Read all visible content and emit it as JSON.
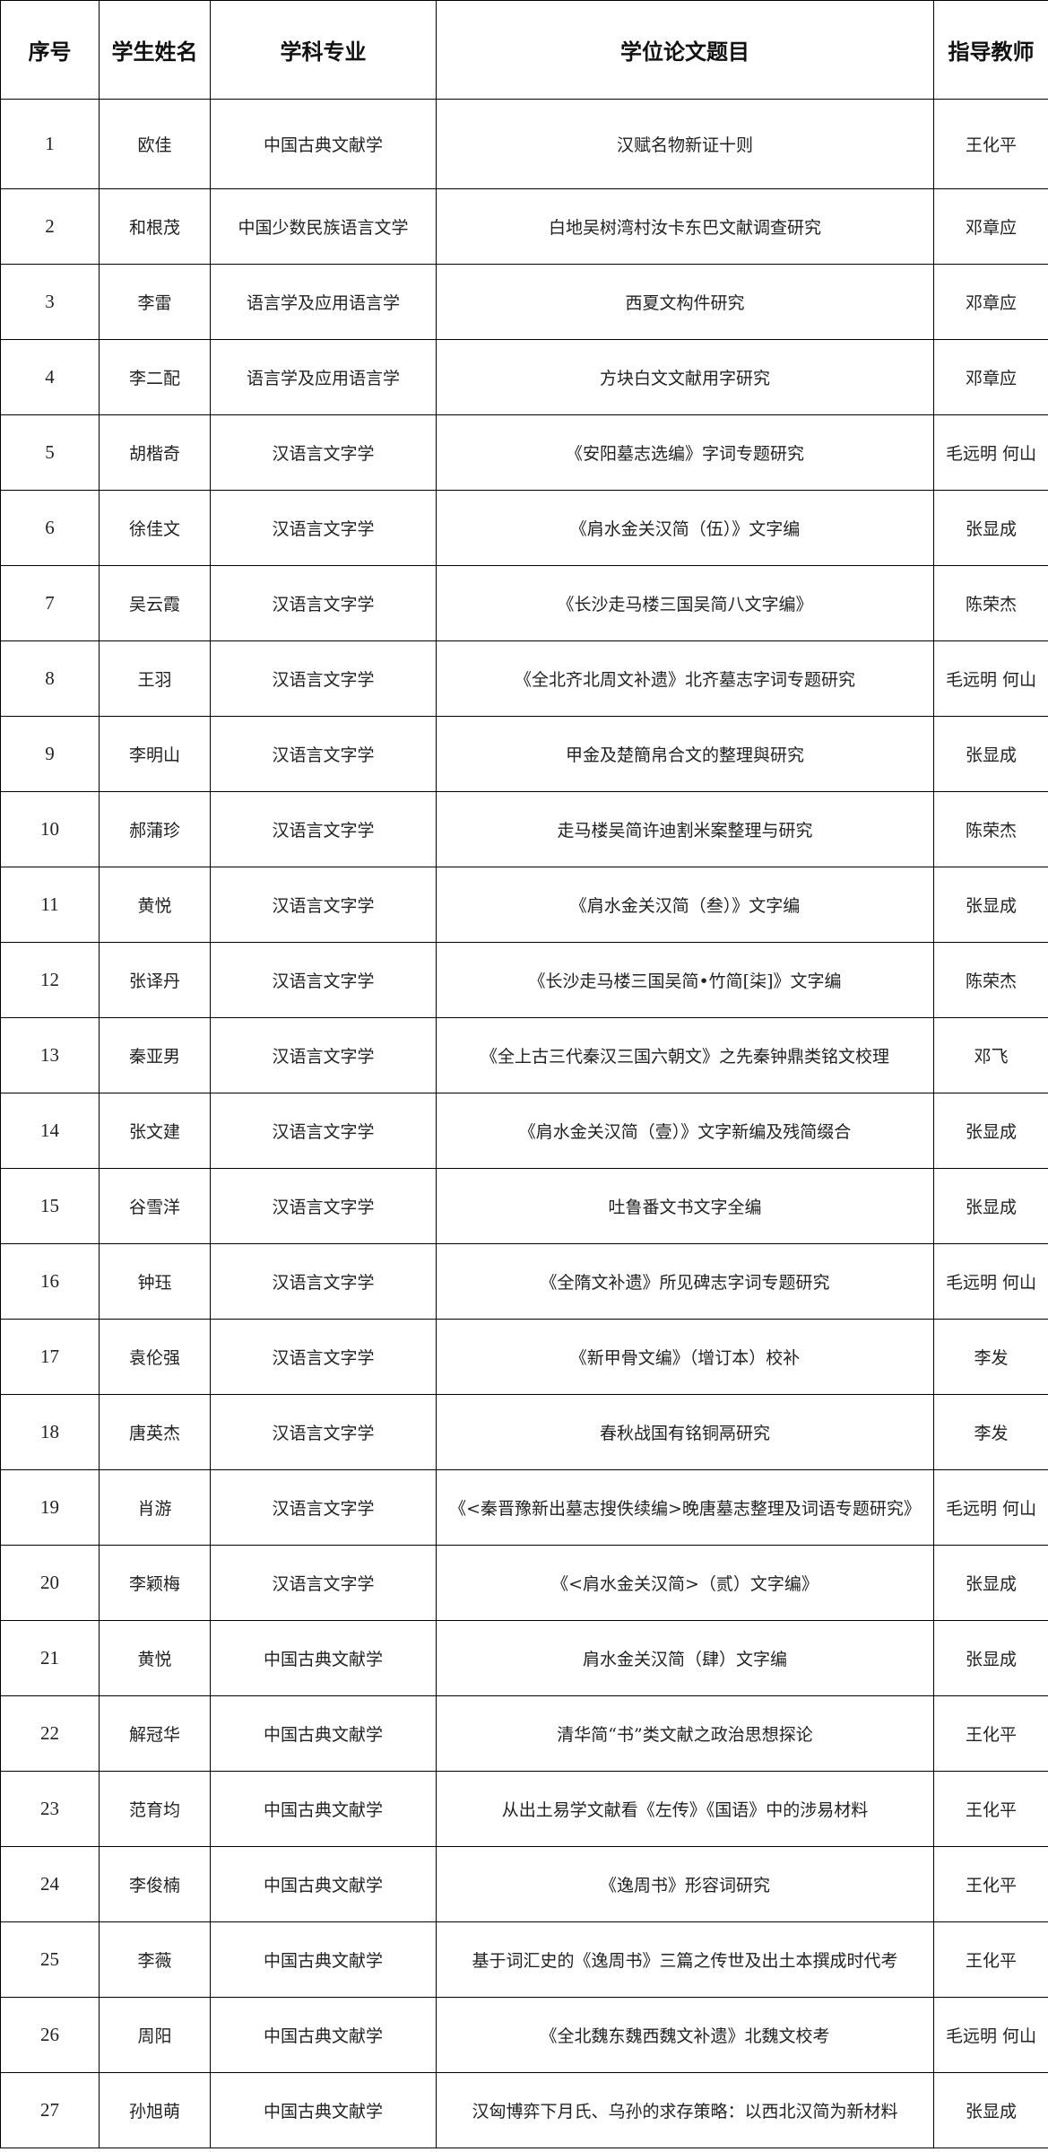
{
  "headers": [
    "序号",
    "学生姓名",
    "学科专业",
    "学位论文题目",
    "指导教师"
  ],
  "rows": [
    [
      "1",
      "欧佳",
      "中国古典文献学",
      "汉赋名物新证十则",
      "王化平"
    ],
    [
      "2",
      "和根茂",
      "中国少数民族语言文学",
      "白地吴树湾村汝卡东巴文献调查研究",
      "邓章应"
    ],
    [
      "3",
      "李雷",
      "语言学及应用语言学",
      "西夏文构件研究",
      "邓章应"
    ],
    [
      "4",
      "李二配",
      "语言学及应用语言学",
      "方块白文文献用字研究",
      "邓章应"
    ],
    [
      "5",
      "胡楷奇",
      "汉语言文字学",
      "《安阳墓志选编》字词专题研究",
      "毛远明  何山"
    ],
    [
      "6",
      "徐佳文",
      "汉语言文字学",
      "《肩水金关汉简（伍）》文字编",
      "张显成"
    ],
    [
      "7",
      "吴云霞",
      "汉语言文字学",
      "《长沙走马楼三国吴简八文字编》",
      "陈荣杰"
    ],
    [
      "8",
      "王羽",
      "汉语言文字学",
      "《全北齐北周文补遗》北齐墓志字词专题研究",
      "毛远明  何山"
    ],
    [
      "9",
      "李明山",
      "汉语言文字学",
      "甲金及楚簡帛合文的整理與研究",
      "张显成"
    ],
    [
      "10",
      "郝蒲珍",
      "汉语言文字学",
      "走马楼吴简许迪割米案整理与研究",
      "陈荣杰"
    ],
    [
      "11",
      "黄悦",
      "汉语言文字学",
      "《肩水金关汉简（叁）》文字编",
      "张显成"
    ],
    [
      "12",
      "张译丹",
      "汉语言文字学",
      "《长沙走马楼三国吴简•竹简[柒]》文字编",
      "陈荣杰"
    ],
    [
      "13",
      "秦亚男",
      "汉语言文字学",
      "《全上古三代秦汉三国六朝文》之先秦钟鼎类铭文校理",
      "邓飞"
    ],
    [
      "14",
      "张文建",
      "汉语言文字学",
      "《肩水金关汉简（壹）》文字新编及残简缀合",
      "张显成"
    ],
    [
      "15",
      "谷雪洋",
      "汉语言文字学",
      "吐鲁番文书文字全编",
      "张显成"
    ],
    [
      "16",
      "钟珏",
      "汉语言文字学",
      "《全隋文补遗》所见碑志字词专题研究",
      "毛远明  何山"
    ],
    [
      "17",
      "袁伦强",
      "汉语言文字学",
      "《新甲骨文编》（增订本）校补",
      "李发"
    ],
    [
      "18",
      "唐英杰",
      "汉语言文字学",
      "春秋战国有铭铜鬲研究",
      "李发"
    ],
    [
      "19",
      "肖游",
      "汉语言文字学",
      "《<秦晋豫新出墓志搜佚续编>晚唐墓志整理及词语专题研究》",
      "毛远明  何山"
    ],
    [
      "20",
      "李颖梅",
      "汉语言文字学",
      "《<肩水金关汉简>（贰）文字编》",
      "张显成"
    ],
    [
      "21",
      "黄悦",
      "中国古典文献学",
      "肩水金关汉简（肆）文字编",
      "张显成"
    ],
    [
      "22",
      "解冠华",
      "中国古典文献学",
      "清华简“书”类文献之政治思想探论",
      "王化平"
    ],
    [
      "23",
      "范育均",
      "中国古典文献学",
      "从出土易学文献看《左传》《国语》中的涉易材料",
      "王化平"
    ],
    [
      "24",
      "李俊楠",
      "中国古典文献学",
      "《逸周书》形容词研究",
      "王化平"
    ],
    [
      "25",
      "李薇",
      "中国古典文献学",
      "基于词汇史的《逸周书》三篇之传世及出土本撰成时代考",
      "王化平"
    ],
    [
      "26",
      "周阳",
      "中国古典文献学",
      "《全北魏东魏西魏文补遗》北魏文校考",
      "毛远明  何山"
    ],
    [
      "27",
      "孙旭萌",
      "中国古典文献学",
      "汉匈博弈下月氏、乌孙的求存策略：以西北汉简为新材料",
      "张显成"
    ]
  ]
}
